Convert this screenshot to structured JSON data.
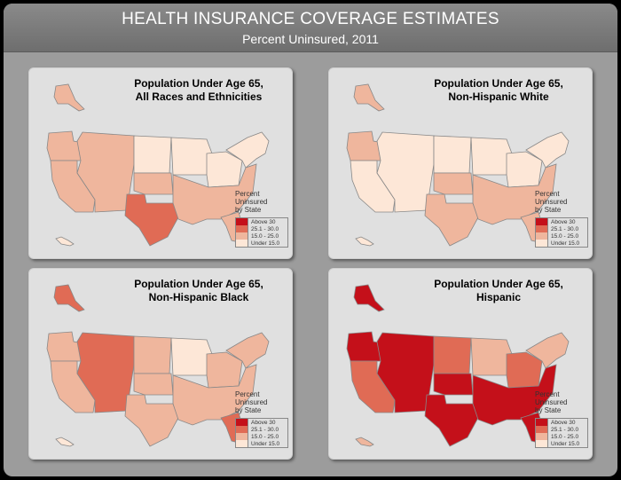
{
  "header": {
    "title": "HEALTH INSURANCE COVERAGE ESTIMATES",
    "subtitle": "Percent Uninsured, 2011"
  },
  "legend": {
    "title_lines": [
      "Percent",
      "Uninsured",
      "by State"
    ],
    "classes": [
      {
        "label": "Above 30",
        "color": "#c4101a"
      },
      {
        "label": "25.1 - 30.0",
        "color": "#e06b55"
      },
      {
        "label": "15.0 - 25.0",
        "color": "#efb69d"
      },
      {
        "label": "Under 15.0",
        "color": "#fde7d7"
      }
    ]
  },
  "panels": [
    {
      "title_lines": [
        "Population Under Age 65,",
        "All Races and Ethnicities"
      ],
      "region_classes": {
        "west": 2,
        "northwest": 2,
        "mountain": 2,
        "plains_north": 3,
        "plains_south": 2,
        "texas": 1,
        "midwest_upper": 3,
        "midwest": 3,
        "northeast": 3,
        "south": 2,
        "florida": 2,
        "alaska": 2,
        "hawaii": 3
      }
    },
    {
      "title_lines": [
        "Population Under Age 65,",
        "Non-Hispanic White"
      ],
      "region_classes": {
        "west": 3,
        "northwest": 2,
        "mountain": 3,
        "plains_north": 3,
        "plains_south": 2,
        "texas": 2,
        "midwest_upper": 3,
        "midwest": 3,
        "northeast": 3,
        "south": 2,
        "florida": 2,
        "alaska": 2,
        "hawaii": 3
      }
    },
    {
      "title_lines": [
        "Population Under Age 65,",
        "Non-Hispanic Black"
      ],
      "region_classes": {
        "west": 2,
        "northwest": 2,
        "mountain": 1,
        "plains_north": 2,
        "plains_south": 2,
        "texas": 2,
        "midwest_upper": 3,
        "midwest": 2,
        "northeast": 2,
        "south": 2,
        "florida": 1,
        "alaska": 1,
        "hawaii": 3
      }
    },
    {
      "title_lines": [
        "Population Under Age 65,",
        "Hispanic"
      ],
      "region_classes": {
        "west": 1,
        "northwest": 0,
        "mountain": 0,
        "plains_north": 1,
        "plains_south": 0,
        "texas": 0,
        "midwest_upper": 2,
        "midwest": 1,
        "northeast": 2,
        "south": 0,
        "florida": 0,
        "alaska": 0,
        "hawaii": 2
      }
    }
  ]
}
